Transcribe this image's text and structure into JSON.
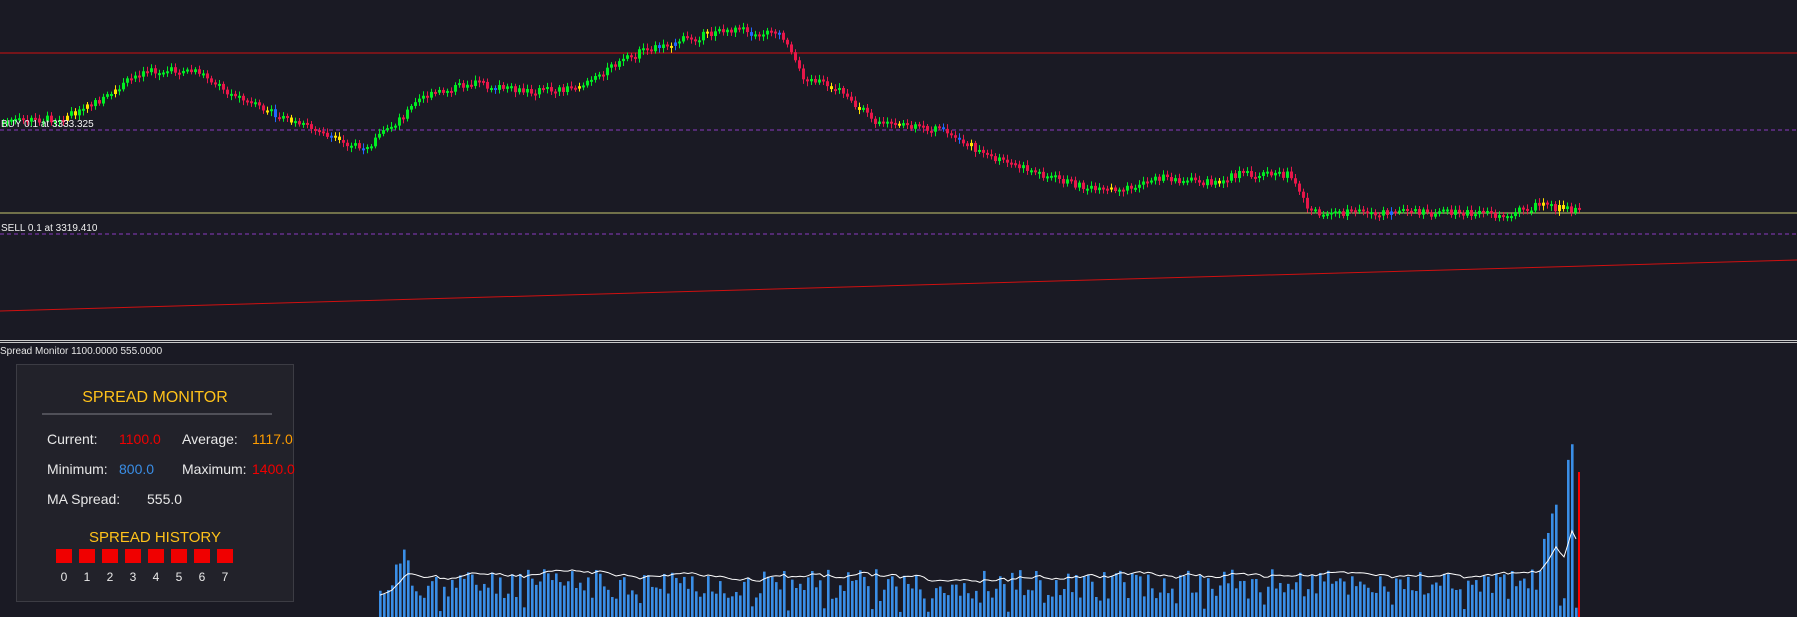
{
  "chart": {
    "buy_label": "BUY 0.1 at 3333.325",
    "sell_label": "SELL 0.1 at 3319.410",
    "colors": {
      "bull": "#00ee22",
      "bear": "#e8174a",
      "background": "#1a1a24",
      "hline": "#d01010",
      "buy_line": "#8a3ac0",
      "sell_line": "#c8c870"
    }
  },
  "indicator": {
    "label": "Spread Monitor 1100.0000 555.0000",
    "bar_color": "#3a8ee6",
    "ma_color": "#ffffff"
  },
  "panel": {
    "title": "SPREAD MONITOR",
    "current_label": "Current:",
    "current_value": "1100.0",
    "average_label": "Average:",
    "average_value": "1117.0",
    "minimum_label": "Minimum:",
    "minimum_value": "800.0",
    "maximum_label": "Maximum:",
    "maximum_value": "1400.0",
    "ma_label": "MA Spread:",
    "ma_value": "555.0",
    "history_title": "SPREAD HISTORY",
    "history_indices": [
      "0",
      "1",
      "2",
      "3",
      "4",
      "5",
      "6",
      "7"
    ]
  }
}
